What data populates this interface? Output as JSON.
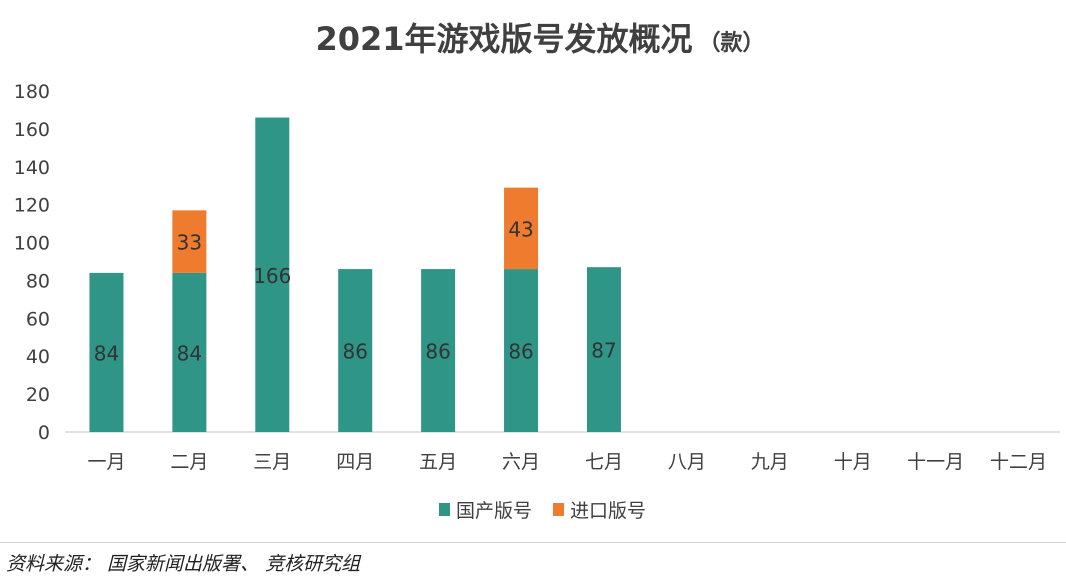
{
  "chart_data": {
    "type": "bar",
    "stacked": true,
    "title": "2021年游戏版号发放概况",
    "unit": "（款）",
    "categories": [
      "一月",
      "二月",
      "三月",
      "四月",
      "五月",
      "六月",
      "七月",
      "八月",
      "九月",
      "十月",
      "十一月",
      "十二月"
    ],
    "series": [
      {
        "name": "国产版号",
        "color": "#2e9587",
        "values": [
          84,
          84,
          166,
          86,
          86,
          86,
          87,
          null,
          null,
          null,
          null,
          null
        ]
      },
      {
        "name": "进口版号",
        "color": "#ef7b2f",
        "values": [
          null,
          33,
          null,
          null,
          null,
          43,
          null,
          null,
          null,
          null,
          null,
          null
        ]
      }
    ],
    "ylim": [
      0,
      180
    ],
    "yticks": [
      0,
      20,
      40,
      60,
      80,
      100,
      120,
      140,
      160,
      180
    ],
    "grid": false,
    "legend": "bottom-center"
  },
  "footer": {
    "source": "资料来源： 国家新闻出版署、 竞核研究组"
  }
}
